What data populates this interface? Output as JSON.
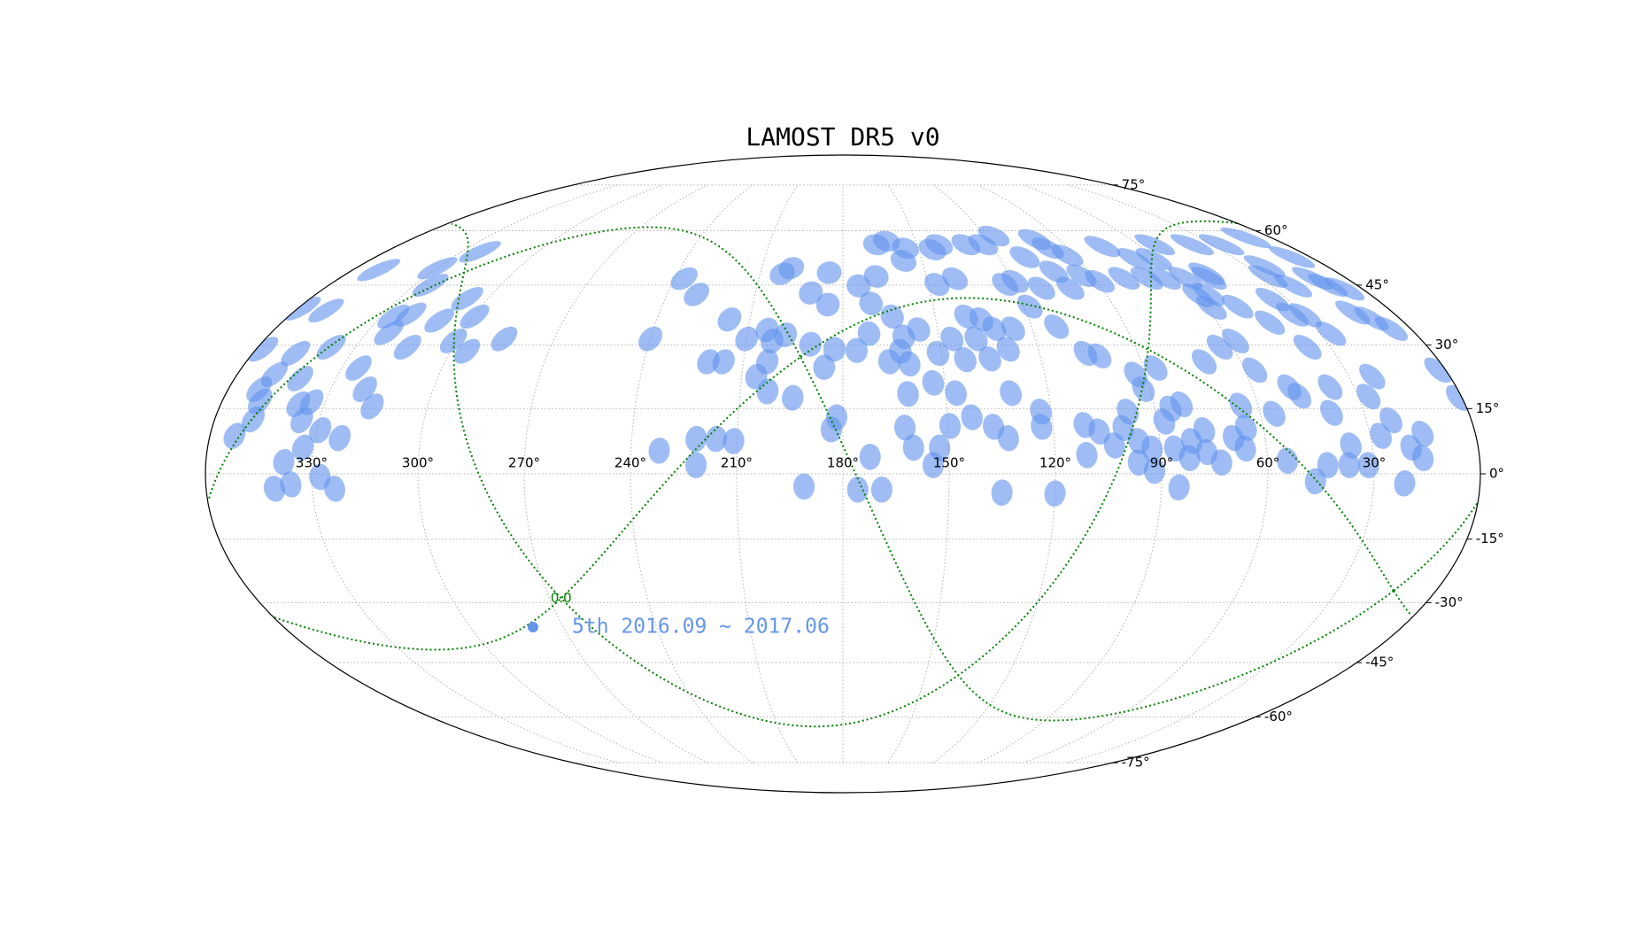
{
  "chart_data": {
    "type": "skymap",
    "projection": "mollweide",
    "title": "LAMOST DR5 v0",
    "xlim": [
      360,
      0
    ],
    "ylim": [
      -90,
      90
    ],
    "grid": true,
    "xticks": [
      {
        "value": 330,
        "label": "330°"
      },
      {
        "value": 300,
        "label": "300°"
      },
      {
        "value": 270,
        "label": "270°"
      },
      {
        "value": 240,
        "label": "240°"
      },
      {
        "value": 210,
        "label": "210°"
      },
      {
        "value": 180,
        "label": "180°"
      },
      {
        "value": 150,
        "label": "150°"
      },
      {
        "value": 120,
        "label": "120°"
      },
      {
        "value": 90,
        "label": "90°"
      },
      {
        "value": 60,
        "label": "60°"
      },
      {
        "value": 30,
        "label": "30°"
      }
    ],
    "yticks": [
      {
        "value": -75,
        "label": "-75°"
      },
      {
        "value": -60,
        "label": "-60°"
      },
      {
        "value": -45,
        "label": "-45°"
      },
      {
        "value": -30,
        "label": "-30°"
      },
      {
        "value": -15,
        "label": "-15°"
      },
      {
        "value": 0,
        "label": "0°"
      },
      {
        "value": 15,
        "label": "15°"
      },
      {
        "value": 30,
        "label": "30°"
      },
      {
        "value": 45,
        "label": "45°"
      },
      {
        "value": 60,
        "label": "60°"
      },
      {
        "value": 75,
        "label": "75°"
      }
    ],
    "galactic": {
      "color": "#008000",
      "longitudes": [
        {
          "value": 0,
          "label": "0.0"
        },
        90,
        180,
        270
      ],
      "latitudes": [
        0
      ]
    },
    "series": [
      {
        "name": "5th 2016.09 ~ 2017.06",
        "color": "#6495ed",
        "x": [
          350.6,
          330,
          323,
          324.6,
          350,
          358.6,
          307,
          299.6,
          326,
          321,
          310,
          323,
          301,
          295,
          285.6,
          314,
          337.5,
          347,
          358,
          325,
          320,
          340.6,
          349,
          351,
          349,
          337.6,
          334,
          316,
          349,
          335,
          329,
          353,
          323,
          333,
          338,
          327.7,
          340.7,
          336,
          323.7,
          236.7,
          230,
          240,
          216.6,
          204,
          210,
          198,
          202,
          220.6,
          216,
          205.7,
          202.8,
          202,
          194.6,
          232,
          221.7,
          216,
          211,
          221.5,
          191,
          175.8,
          169,
          172.3,
          183.3,
          181.8,
          202,
          199,
          191,
          185,
          185,
          190,
          182.6,
          185.6,
          175.8,
          171.8,
          174.5,
          168,
          170.6,
          166.4,
          162,
          157,
          155,
          164,
          166,
          161,
          160,
          162.4,
          161,
          156,
          162.3,
          160,
          153.4,
          154.5,
          152.6,
          149.4,
          147,
          151,
          146,
          144.5,
          141,
          147,
          140,
          130,
          123,
          116,
          140,
          135.3,
          138.5,
          143,
          135.5,
          132,
          126,
          129.3,
          131,
          143,
          137,
          133,
          135,
          123,
          119,
          100,
          110,
          111,
          118,
          112,
          123,
          123.3,
          120,
          103,
          93,
          101,
          94,
          89,
          75.4,
          106,
          102,
          111,
          111,
          107,
          103,
          98,
          93,
          92,
          100,
          96,
          96.5,
          92.4,
          92,
          88,
          85.5,
          82,
          86,
          85,
          82,
          81,
          77,
          77,
          73,
          69,
          65,
          66,
          65,
          56,
          54.4,
          47,
          46.5,
          37,
          43,
          39.4,
          37,
          36,
          31.5,
          27,
          27,
          23,
          23,
          21.3,
          19,
          15,
          16,
          2.2,
          1,
          64,
          58,
          71,
          86.4,
          57,
          49,
          37,
          26.5,
          29.4,
          43,
          49,
          58,
          55,
          35,
          33.4,
          10,
          6,
          13,
          9,
          6,
          12,
          22.5,
          27,
          49,
          59,
          57.4,
          65,
          71.3,
          61,
          68.4,
          79.5,
          53.2,
          38,
          26,
          10.4,
          48,
          7,
          23,
          98
        ],
        "y": [
          49,
          49.5,
          54,
          45,
          38.5,
          39,
          41.5,
          37,
          37,
          37.5,
          36,
          33,
          31,
          28.5,
          31.5,
          29.5,
          29.5,
          28,
          29,
          24.5,
          19.5,
          22,
          23,
          19.5,
          16.7,
          16,
          16.5,
          15.5,
          12.5,
          12.3,
          10,
          8.7,
          8.2,
          6,
          2.7,
          -0.7,
          -3.4,
          -2.4,
          -3.4,
          46.7,
          42.6,
          31.5,
          36.3,
          33.7,
          31.5,
          32.5,
          31,
          26,
          26,
          22.5,
          26,
          19,
          17.5,
          5.3,
          8,
          8,
          7.5,
          2,
          -2.9,
          -3.6,
          -3.6,
          3.9,
          10.2,
          13,
          48,
          49.5,
          43,
          48.3,
          40,
          30.2,
          29,
          24.7,
          28.7,
          32.8,
          44.8,
          47.3,
          40.3,
          56,
          57,
          51.5,
          55,
          37,
          26,
          32,
          25.5,
          28.5,
          18.4,
          33.8,
          10.6,
          6,
          21,
          2,
          6,
          11,
          18.6,
          28,
          31.5,
          54.6,
          56,
          45.2,
          46.7,
          56,
          56,
          58.5,
          37,
          36.3,
          31.5,
          26.5,
          26.7,
          34,
          34,
          29,
          18.6,
          13,
          10.8,
          8.2,
          -4.3,
          45.2,
          46,
          57.5,
          52.5,
          44.2,
          39.5,
          34.5,
          14.3,
          10.8,
          -4.5,
          48.5,
          53,
          44.2,
          47.5,
          46,
          55.5,
          28,
          27.4,
          11.2,
          4.3,
          9.7,
          6.5,
          14.3,
          23,
          19.5,
          10.5,
          7.5,
          2.6,
          5.8,
          0.7,
          12,
          15,
          16,
          5.8,
          -3.1,
          3.6,
          7.5,
          10,
          5,
          2.6,
          8.2,
          10.5,
          5.8,
          15.7,
          13.8,
          3,
          18,
          -1.7,
          20,
          2,
          14,
          2,
          6.5,
          2,
          8.7,
          17.8,
          22.5,
          12.3,
          -2.2,
          6,
          9.2,
          3.6,
          24,
          17.5,
          29.5,
          31,
          26,
          24.5,
          24,
          20,
          29.5,
          32.8,
          37.3,
          35.5,
          39.5,
          39.2,
          42.6,
          41.3,
          37.5,
          45,
          44,
          38,
          36.5,
          34,
          46.8,
          44.8,
          47.3,
          46.8,
          42.3,
          46.8,
          46.8,
          46.8,
          52,
          52,
          46.8,
          56,
          56,
          56,
          58,
          48,
          52.5,
          50,
          55
        ]
      }
    ]
  }
}
